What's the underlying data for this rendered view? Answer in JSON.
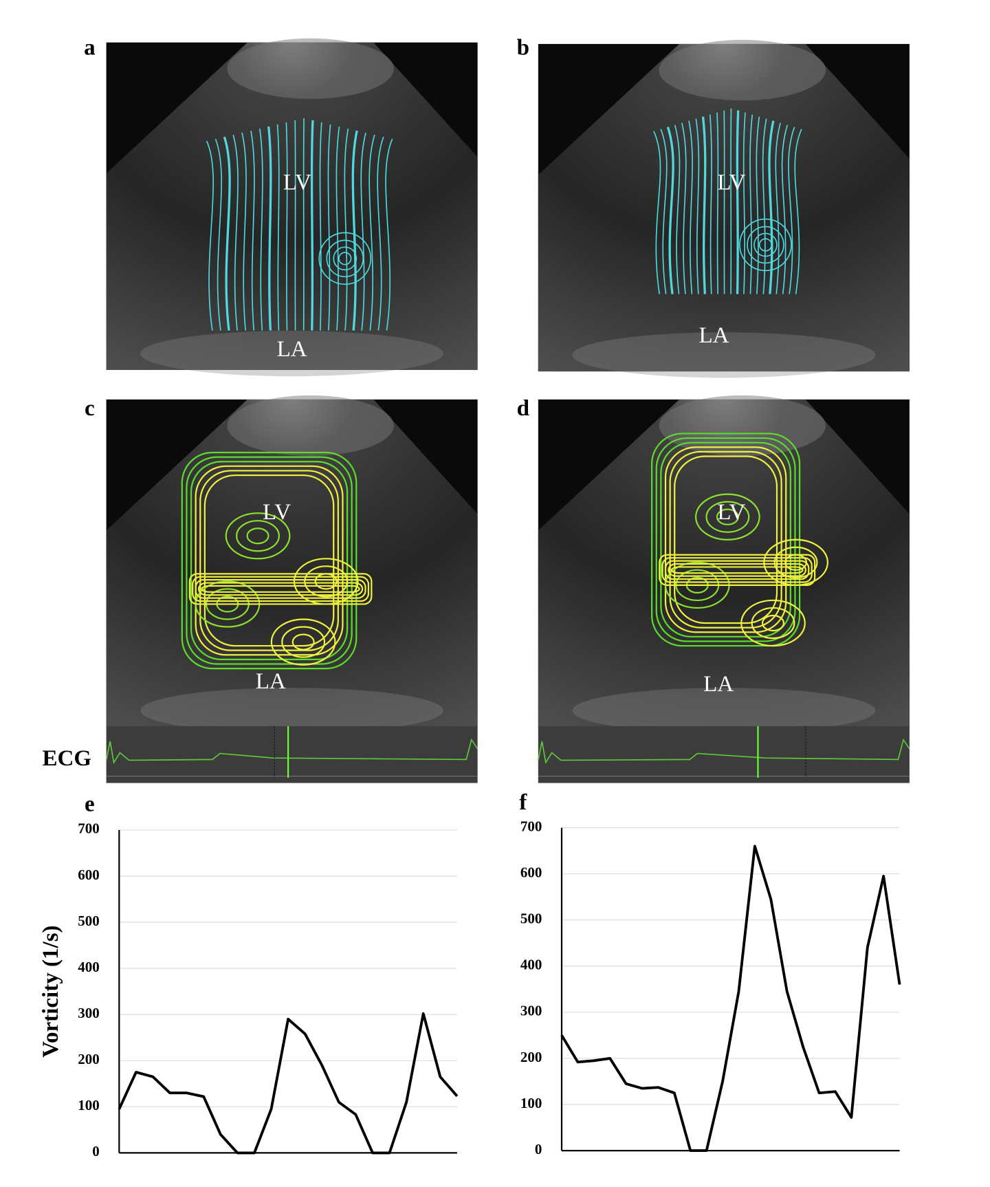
{
  "panels": [
    {
      "label": "a",
      "lv": "LV",
      "la": "LA"
    },
    {
      "label": "b",
      "lv": "LV",
      "la": "LA"
    },
    {
      "label": "c",
      "lv": "LV",
      "la": "LA"
    },
    {
      "label": "d",
      "lv": "LV",
      "la": "LA"
    }
  ],
  "ecg_label": "ECG",
  "chart_data": [
    {
      "type": "line",
      "label": "e",
      "ylabel": "Vorticity (1/s)",
      "color": "#000000",
      "grid": true,
      "values": [
        95,
        175,
        165,
        130,
        130,
        122,
        40,
        0,
        0,
        95,
        290,
        258,
        190,
        110,
        83,
        0,
        0,
        110,
        302,
        165,
        123
      ],
      "ylim": [
        0,
        700
      ],
      "yticks": [
        0,
        100,
        200,
        300,
        400,
        500,
        600,
        700
      ]
    },
    {
      "type": "line",
      "label": "f",
      "color": "#000000",
      "grid": true,
      "values": [
        250,
        192,
        195,
        200,
        145,
        135,
        137,
        125,
        0,
        0,
        150,
        345,
        660,
        545,
        345,
        225,
        125,
        128,
        72,
        440,
        595,
        360
      ],
      "ylim": [
        0,
        700
      ],
      "yticks": [
        0,
        100,
        200,
        300,
        400,
        500,
        600,
        700
      ]
    }
  ]
}
